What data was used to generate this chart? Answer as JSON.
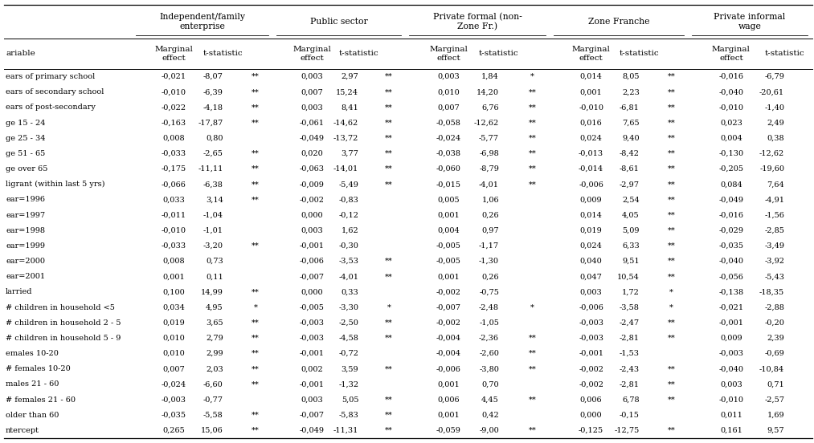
{
  "group_labels": [
    "Independent/family\nenterprise",
    "Public sector",
    "Private formal (non-\nZone Fr.)",
    "Zone Franche",
    "Private informal\nwage"
  ],
  "rows": [
    [
      "ears of primary school",
      "-0,021",
      "-8,07",
      "**",
      "0,003",
      "2,97",
      "**",
      "0,003",
      "1,84",
      "*",
      "0,014",
      "8,05",
      "**",
      "-0,016",
      "-6,79"
    ],
    [
      "ears of secondary school",
      "-0,010",
      "-6,39",
      "**",
      "0,007",
      "15,24",
      "**",
      "0,010",
      "14,20",
      "**",
      "0,001",
      "2,23",
      "**",
      "-0,040",
      "-20,61"
    ],
    [
      "ears of post-secondary",
      "-0,022",
      "-4,18",
      "**",
      "0,003",
      "8,41",
      "**",
      "0,007",
      "6,76",
      "**",
      "-0,010",
      "-6,81",
      "**",
      "-0,010",
      "-1,40"
    ],
    [
      "ge 15 - 24",
      "-0,163",
      "-17,87",
      "**",
      "-0,061",
      "-14,62",
      "**",
      "-0,058",
      "-12,62",
      "**",
      "0,016",
      "7,65",
      "**",
      "0,023",
      "2,49"
    ],
    [
      "ge 25 - 34",
      "0,008",
      "0,80",
      "",
      "-0,049",
      "-13,72",
      "**",
      "-0,024",
      "-5,77",
      "**",
      "0,024",
      "9,40",
      "**",
      "0,004",
      "0,38"
    ],
    [
      "ge 51 - 65",
      "-0,033",
      "-2,65",
      "**",
      "0,020",
      "3,77",
      "**",
      "-0,038",
      "-6,98",
      "**",
      "-0,013",
      "-8,42",
      "**",
      "-0,130",
      "-12,62"
    ],
    [
      "ge over 65",
      "-0,175",
      "-11,11",
      "**",
      "-0,063",
      "-14,01",
      "**",
      "-0,060",
      "-8,79",
      "**",
      "-0,014",
      "-8,61",
      "**",
      "-0,205",
      "-19,60"
    ],
    [
      "ligrant (within last 5 yrs)",
      "-0,066",
      "-6,38",
      "**",
      "-0,009",
      "-5,49",
      "**",
      "-0,015",
      "-4,01",
      "**",
      "-0,006",
      "-2,97",
      "**",
      "0,084",
      "7,64"
    ],
    [
      "ear=1996",
      "0,033",
      "3,14",
      "**",
      "-0,002",
      "-0,83",
      "",
      "0,005",
      "1,06",
      "",
      "0,009",
      "2,54",
      "**",
      "-0,049",
      "-4,91"
    ],
    [
      "ear=1997",
      "-0,011",
      "-1,04",
      "",
      "0,000",
      "-0,12",
      "",
      "0,001",
      "0,26",
      "",
      "0,014",
      "4,05",
      "**",
      "-0,016",
      "-1,56"
    ],
    [
      "ear=1998",
      "-0,010",
      "-1,01",
      "",
      "0,003",
      "1,62",
      "",
      "0,004",
      "0,97",
      "",
      "0,019",
      "5,09",
      "**",
      "-0,029",
      "-2,85"
    ],
    [
      "ear=1999",
      "-0,033",
      "-3,20",
      "**",
      "-0,001",
      "-0,30",
      "",
      "-0,005",
      "-1,17",
      "",
      "0,024",
      "6,33",
      "**",
      "-0,035",
      "-3,49"
    ],
    [
      "ear=2000",
      "0,008",
      "0,73",
      "",
      "-0,006",
      "-3,53",
      "**",
      "-0,005",
      "-1,30",
      "",
      "0,040",
      "9,51",
      "**",
      "-0,040",
      "-3,92"
    ],
    [
      "ear=2001",
      "0,001",
      "0,11",
      "",
      "-0,007",
      "-4,01",
      "**",
      "0,001",
      "0,26",
      "",
      "0,047",
      "10,54",
      "**",
      "-0,056",
      "-5,43"
    ],
    [
      "larried",
      "0,100",
      "14,99",
      "**",
      "0,000",
      "0,33",
      "",
      "-0,002",
      "-0,75",
      "",
      "0,003",
      "1,72",
      "*",
      "-0,138",
      "-18,35"
    ],
    [
      "# children in household <5",
      "0,034",
      "4,95",
      "*",
      "-0,005",
      "-3,30",
      "*",
      "-0,007",
      "-2,48",
      "*",
      "-0,006",
      "-3,58",
      "*",
      "-0,021",
      "-2,88"
    ],
    [
      "# children in household 2 - 5",
      "0,019",
      "3,65",
      "**",
      "-0,003",
      "-2,50",
      "**",
      "-0,002",
      "-1,05",
      "",
      "-0,003",
      "-2,47",
      "**",
      "-0,001",
      "-0,20"
    ],
    [
      "# children in household 5 - 9",
      "0,010",
      "2,79",
      "**",
      "-0,003",
      "-4,58",
      "**",
      "-0,004",
      "-2,36",
      "**",
      "-0,003",
      "-2,81",
      "**",
      "0,009",
      "2,39"
    ],
    [
      "emales 10-20",
      "0,010",
      "2,99",
      "**",
      "-0,001",
      "-0,72",
      "",
      "-0,004",
      "-2,60",
      "**",
      "-0,001",
      "-1,53",
      "",
      "-0,003",
      "-0,69"
    ],
    [
      "# females 10-20",
      "0,007",
      "2,03",
      "**",
      "0,002",
      "3,59",
      "**",
      "-0,006",
      "-3,80",
      "**",
      "-0,002",
      "-2,43",
      "**",
      "-0,040",
      "-10,84"
    ],
    [
      "males 21 - 60",
      "-0,024",
      "-6,60",
      "**",
      "-0,001",
      "-1,32",
      "",
      "0,001",
      "0,70",
      "",
      "-0,002",
      "-2,81",
      "**",
      "0,003",
      "0,71"
    ],
    [
      "# females 21 - 60",
      "-0,003",
      "-0,77",
      "",
      "0,003",
      "5,05",
      "**",
      "0,006",
      "4,45",
      "**",
      "0,006",
      "6,78",
      "**",
      "-0,010",
      "-2,57"
    ],
    [
      "older than 60",
      "-0,035",
      "-5,58",
      "**",
      "-0,007",
      "-5,83",
      "**",
      "0,001",
      "0,42",
      "",
      "0,000",
      "-0,15",
      "",
      "0,011",
      "1,69"
    ],
    [
      "ntercept",
      "0,265",
      "15,06",
      "**",
      "-0,049",
      "-11,31",
      "**",
      "-0,059",
      "-9,00",
      "**",
      "-0,125",
      "-12,75",
      "**",
      "0,161",
      "9,57"
    ]
  ],
  "bg_color": "white",
  "text_color": "black",
  "line_color": "black",
  "fs_group": 7.8,
  "fs_sub": 7.5,
  "fs_data": 7.0,
  "fs_var": 7.0
}
